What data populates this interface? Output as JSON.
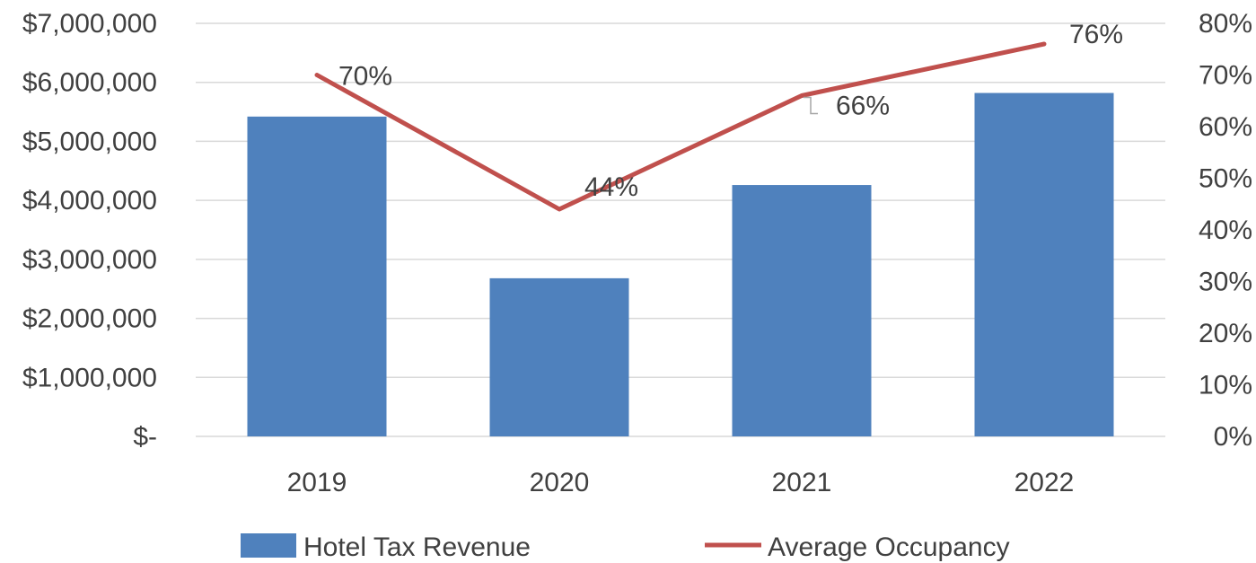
{
  "chart_data": {
    "type": "bar",
    "categories": [
      "2019",
      "2020",
      "2021",
      "2022"
    ],
    "series": [
      {
        "name": "Hotel Tax Revenue",
        "kind": "bar",
        "axis": "left",
        "color": "#4f81bd",
        "values": [
          5420000,
          2680000,
          4260000,
          5820000
        ]
      },
      {
        "name": "Average Occupancy",
        "kind": "line",
        "axis": "right",
        "color": "#c0504d",
        "values": [
          0.7,
          0.44,
          0.66,
          0.76
        ],
        "data_labels": [
          "70%",
          "44%",
          "66%",
          "76%"
        ]
      }
    ],
    "y_left": {
      "ylim": [
        0,
        7000000
      ],
      "ticks": [
        0,
        1000000,
        2000000,
        3000000,
        4000000,
        5000000,
        6000000,
        7000000
      ],
      "tick_labels": [
        "$-",
        "$1,000,000",
        "$2,000,000",
        "$3,000,000",
        "$4,000,000",
        "$5,000,000",
        "$6,000,000",
        "$7,000,000"
      ]
    },
    "y_right": {
      "ylim": [
        0,
        0.8
      ],
      "ticks": [
        0,
        0.1,
        0.2,
        0.3,
        0.4,
        0.5,
        0.6,
        0.7,
        0.8
      ],
      "tick_labels": [
        "0%",
        "10%",
        "20%",
        "30%",
        "40%",
        "50%",
        "60%",
        "70%",
        "80%"
      ]
    },
    "grid": true,
    "legend": "bottom",
    "title": "",
    "xlabel": "",
    "ylabel": ""
  }
}
